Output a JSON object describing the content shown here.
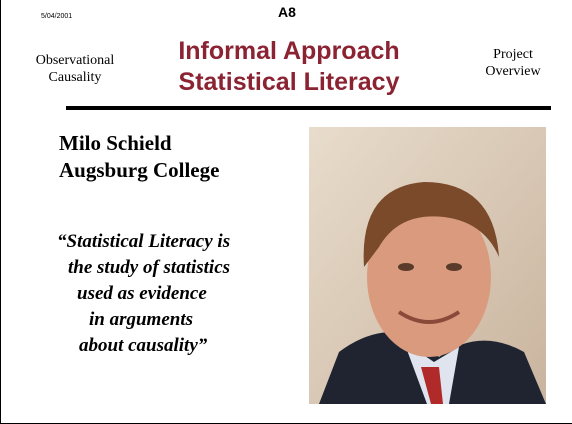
{
  "header": {
    "date": "5/04/2001",
    "code": "A8",
    "left_label": [
      "Observational",
      "Causality"
    ],
    "title": [
      "Informal Approach",
      "Statistical Literacy"
    ],
    "right_label": [
      "Project",
      "Overview"
    ]
  },
  "body": {
    "name": "Milo Schield",
    "affiliation": "Augsburg College",
    "quote": [
      "“Statistical Literacy is",
      "the study of statistics",
      "used as evidence",
      "in arguments",
      "about causality”"
    ]
  }
}
